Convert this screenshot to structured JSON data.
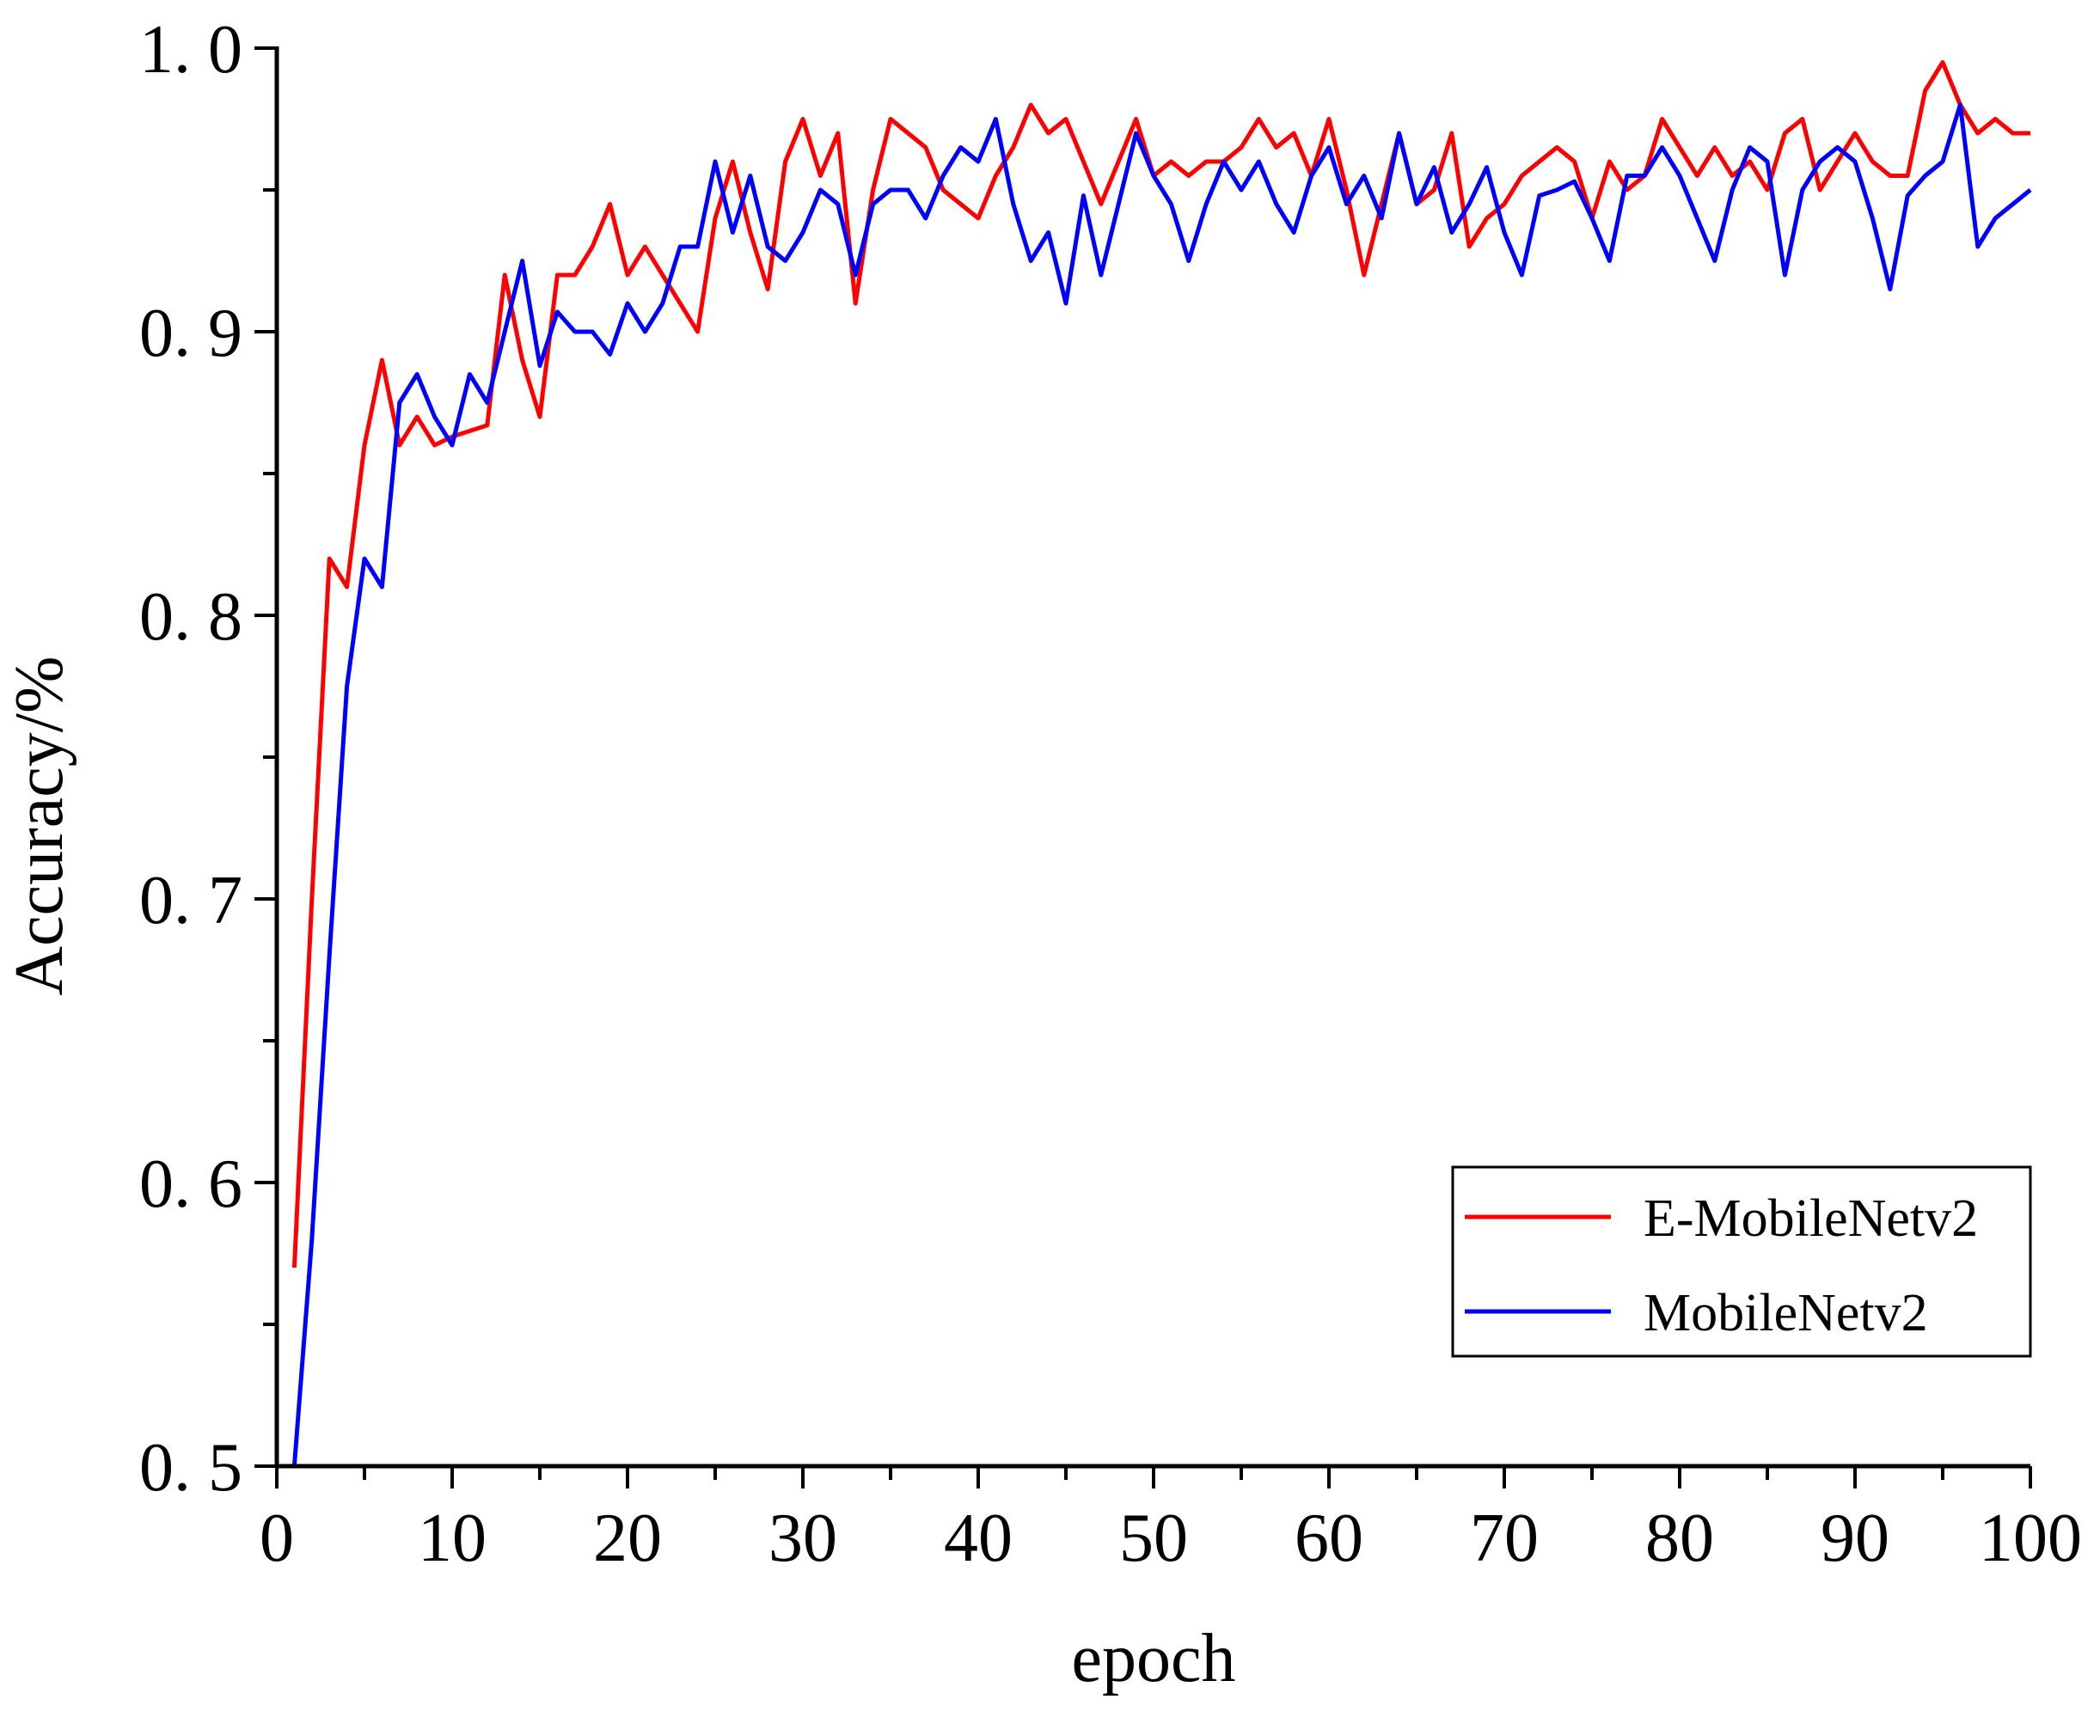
{
  "chart_data": {
    "type": "line",
    "title": "",
    "xlabel": "epoch",
    "ylabel": "Accuracy/%",
    "xlim": [
      0,
      100
    ],
    "ylim": [
      0.5,
      1.0
    ],
    "x_ticks": [
      0,
      10,
      20,
      30,
      40,
      50,
      60,
      70,
      80,
      90,
      100
    ],
    "y_ticks": [
      0.5,
      0.6,
      0.7,
      0.8,
      0.9,
      1.0
    ],
    "x_tick_labels": [
      "0",
      "10",
      "20",
      "30",
      "40",
      "50",
      "60",
      "70",
      "80",
      "90",
      "100"
    ],
    "y_tick_labels": [
      "0. 5",
      "0. 6",
      "0. 7",
      "0. 8",
      "0. 9",
      "1. 0"
    ],
    "grid": false,
    "legend_position": "bottom-right",
    "x": [
      1,
      2,
      3,
      4,
      5,
      6,
      7,
      8,
      9,
      10,
      11,
      12,
      13,
      14,
      15,
      16,
      17,
      18,
      19,
      20,
      21,
      22,
      23,
      24,
      25,
      26,
      27,
      28,
      29,
      30,
      31,
      32,
      33,
      34,
      35,
      36,
      37,
      38,
      39,
      40,
      41,
      42,
      43,
      44,
      45,
      46,
      47,
      48,
      49,
      50,
      51,
      52,
      53,
      54,
      55,
      56,
      57,
      58,
      59,
      60,
      61,
      62,
      63,
      64,
      65,
      66,
      67,
      68,
      69,
      70,
      71,
      72,
      73,
      74,
      75,
      76,
      77,
      78,
      79,
      80,
      81,
      82,
      83,
      84,
      85,
      86,
      87,
      88,
      89,
      90,
      91,
      92,
      93,
      94,
      95,
      96,
      97,
      98,
      99,
      100
    ],
    "series": [
      {
        "name": "E-MobileNetv2",
        "color": "#ff0000",
        "values": [
          0.57,
          0.7,
          0.82,
          0.81,
          0.86,
          0.89,
          0.86,
          0.87,
          0.86,
          0.863,
          0.865,
          0.867,
          0.92,
          0.89,
          0.87,
          0.92,
          0.92,
          0.93,
          0.945,
          0.92,
          0.93,
          0.92,
          0.91,
          0.9,
          0.94,
          0.96,
          0.935,
          0.915,
          0.96,
          0.975,
          0.955,
          0.97,
          0.91,
          0.95,
          0.975,
          0.97,
          0.965,
          0.95,
          0.945,
          0.94,
          0.955,
          0.965,
          0.98,
          0.97,
          0.975,
          0.96,
          0.945,
          0.96,
          0.975,
          0.955,
          0.96,
          0.955,
          0.96,
          0.96,
          0.965,
          0.975,
          0.965,
          0.97,
          0.955,
          0.975,
          0.95,
          0.92,
          0.945,
          0.97,
          0.945,
          0.95,
          0.97,
          0.93,
          0.94,
          0.945,
          0.955,
          0.96,
          0.965,
          0.96,
          0.94,
          0.96,
          0.95,
          0.955,
          0.975,
          0.965,
          0.955,
          0.965,
          0.955,
          0.96,
          0.95,
          0.97,
          0.975,
          0.95,
          0.96,
          0.97,
          0.96,
          0.955,
          0.955,
          0.985,
          0.995,
          0.98,
          0.97,
          0.975,
          0.97,
          0.97
        ]
      },
      {
        "name": "MobileNetv2",
        "color": "#0000ff",
        "values": [
          0.5,
          0.58,
          0.68,
          0.775,
          0.82,
          0.81,
          0.875,
          0.885,
          0.87,
          0.86,
          0.885,
          0.875,
          0.9,
          0.925,
          0.888,
          0.907,
          0.9,
          0.9,
          0.892,
          0.91,
          0.9,
          0.91,
          0.93,
          0.93,
          0.96,
          0.935,
          0.955,
          0.93,
          0.925,
          0.935,
          0.95,
          0.945,
          0.92,
          0.945,
          0.95,
          0.95,
          0.94,
          0.955,
          0.965,
          0.96,
          0.975,
          0.945,
          0.925,
          0.935,
          0.91,
          0.948,
          0.92,
          0.945,
          0.97,
          0.955,
          0.945,
          0.925,
          0.945,
          0.96,
          0.95,
          0.96,
          0.945,
          0.935,
          0.955,
          0.965,
          0.945,
          0.955,
          0.94,
          0.97,
          0.945,
          0.958,
          0.935,
          0.945,
          0.958,
          0.935,
          0.92,
          0.948,
          0.95,
          0.953,
          0.94,
          0.925,
          0.955,
          0.955,
          0.965,
          0.955,
          0.94,
          0.925,
          0.95,
          0.965,
          0.96,
          0.92,
          0.95,
          0.96,
          0.965,
          0.96,
          0.94,
          0.915,
          0.948,
          0.955,
          0.96,
          0.98,
          0.93,
          0.94,
          0.945,
          0.95
        ]
      }
    ]
  }
}
